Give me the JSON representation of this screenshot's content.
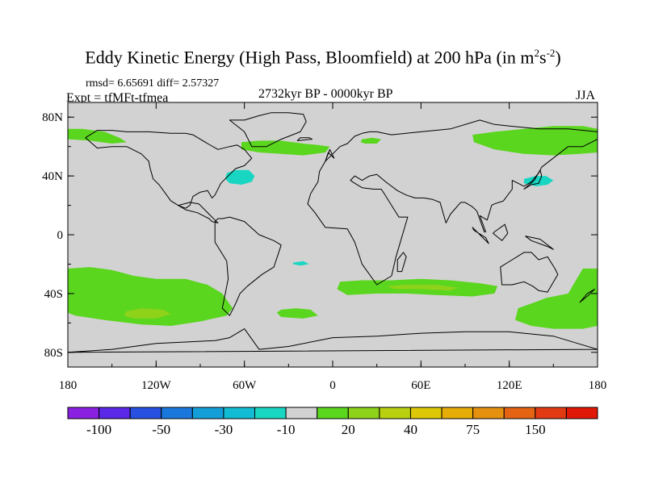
{
  "title": {
    "main": "Eddy Kinetic Energy (High Pass, Bloomfield) at 200 hPa (in m",
    "sup1": "2",
    "mid": "s",
    "sup2": "-2",
    "close": ")"
  },
  "stats": "rmsd= 6.65691 diff= 2.57327",
  "experiment": "Expt = tfMFt-tfmea",
  "period": "2732kyr BP - 0000kyr BP",
  "season": "JJA",
  "chart_data": {
    "type": "filled-contour map",
    "projection": "cylindrical equidistant",
    "lon_range": [
      -180,
      180
    ],
    "lat_range": [
      -90,
      90
    ],
    "x_ticks": [
      {
        "value": -180,
        "label": "180"
      },
      {
        "value": -120,
        "label": "120W"
      },
      {
        "value": -60,
        "label": "60W"
      },
      {
        "value": 0,
        "label": "0"
      },
      {
        "value": 60,
        "label": "60E"
      },
      {
        "value": 120,
        "label": "120E"
      },
      {
        "value": 180,
        "label": "180"
      }
    ],
    "y_ticks": [
      {
        "value": 80,
        "label": "80N"
      },
      {
        "value": 40,
        "label": "40N"
      },
      {
        "value": 0,
        "label": "0"
      },
      {
        "value": -40,
        "label": "40S"
      },
      {
        "value": -80,
        "label": "80S"
      }
    ],
    "background_color": "#d2d2d2",
    "colorbar": {
      "colors": [
        "#8a20e0",
        "#5a28e6",
        "#2850e0",
        "#1a78dc",
        "#149ed8",
        "#12bcd4",
        "#18d6c2",
        "#d2d2d2",
        "#5ad61e",
        "#8ed21a",
        "#b8d010",
        "#dcc806",
        "#e6ac08",
        "#e69010",
        "#e46414",
        "#e23a12",
        "#e01808"
      ],
      "labels": [
        {
          "after_box": 1,
          "label": "-100"
        },
        {
          "after_box": 3,
          "label": "-50"
        },
        {
          "after_box": 5,
          "label": "-30"
        },
        {
          "after_box": 7,
          "label": "-10"
        },
        {
          "after_box": 9,
          "label": "20"
        },
        {
          "after_box": 11,
          "label": "40"
        },
        {
          "after_box": 13,
          "label": "75"
        },
        {
          "after_box": 15,
          "label": "150"
        }
      ]
    },
    "anomaly_regions": [
      {
        "name": "North Pacific / Alaska",
        "level": 10,
        "color": "#5ad61e",
        "lons": [
          -180,
          -170,
          -155,
          -145,
          -140,
          -150,
          -165,
          -180
        ],
        "lats": [
          72,
          72,
          70,
          66,
          63,
          62,
          64,
          65
        ]
      },
      {
        "name": "North Atlantic",
        "level": 10,
        "color": "#5ad61e",
        "lons": [
          -62,
          -50,
          -35,
          -20,
          -10,
          -2,
          -5,
          -20,
          -35,
          -50,
          -62
        ],
        "lats": [
          63,
          64,
          64,
          62,
          61,
          60,
          56,
          54,
          55,
          56,
          58
        ]
      },
      {
        "name": "North Atlantic core",
        "level": -10,
        "color": "#18d6c2",
        "lons": [
          -72,
          -66,
          -57,
          -53,
          -55,
          -62,
          -70,
          -73
        ],
        "lats": [
          42,
          44,
          44,
          40,
          36,
          34,
          35,
          38
        ]
      },
      {
        "name": "Barents Sea",
        "level": 10,
        "color": "#5ad61e",
        "lons": [
          20,
          27,
          33,
          30,
          22,
          19
        ],
        "lats": [
          65,
          66,
          65,
          62,
          62,
          63
        ]
      },
      {
        "name": "Siberia / North Pacific",
        "level": 10,
        "color": "#5ad61e",
        "lons": [
          95,
          110,
          130,
          150,
          170,
          180,
          180,
          168,
          150,
          130,
          110,
          96
        ],
        "lats": [
          68,
          70,
          72,
          74,
          74,
          72,
          56,
          55,
          54,
          55,
          58,
          63
        ]
      },
      {
        "name": "Japan",
        "level": -10,
        "color": "#18d6c2",
        "lons": [
          130,
          138,
          145,
          150,
          146,
          138,
          130
        ],
        "lats": [
          38,
          40,
          40,
          37,
          34,
          33,
          35
        ]
      },
      {
        "name": "South Atlantic tropics",
        "level": -10,
        "color": "#18d6c2",
        "lons": [
          -27,
          -20,
          -16,
          -22,
          -27
        ],
        "lats": [
          -19,
          -18,
          -20,
          -21,
          -20
        ]
      },
      {
        "name": "South Pacific",
        "level": 10,
        "color": "#5ad61e",
        "lons": [
          -180,
          -165,
          -150,
          -135,
          -120,
          -100,
          -85,
          -75,
          -68,
          -72,
          -90,
          -110,
          -130,
          -155,
          -175,
          -180
        ],
        "lats": [
          -23,
          -22,
          -24,
          -28,
          -30,
          -30,
          -34,
          -40,
          -50,
          -55,
          -59,
          -62,
          -61,
          -58,
          -55,
          -53
        ]
      },
      {
        "name": "South Pacific core",
        "level": 20,
        "color": "#8ed21a",
        "lons": [
          -140,
          -130,
          -115,
          -110,
          -120,
          -135,
          -142
        ],
        "lats": [
          -52,
          -50,
          -51,
          -54,
          -57,
          -57,
          -55
        ]
      },
      {
        "name": "South Atlantic",
        "level": 10,
        "color": "#5ad61e",
        "lons": [
          -35,
          -25,
          -15,
          -10,
          -20,
          -35,
          -38
        ],
        "lats": [
          -51,
          -50,
          -51,
          -55,
          -57,
          -56,
          -53
        ]
      },
      {
        "name": "Southern Indian Ocean",
        "level": 10,
        "color": "#5ad61e",
        "lons": [
          5,
          20,
          40,
          60,
          80,
          100,
          112,
          110,
          95,
          70,
          50,
          30,
          10,
          3
        ],
        "lats": [
          -32,
          -31,
          -31,
          -30,
          -31,
          -33,
          -35,
          -40,
          -42,
          -41,
          -40,
          -40,
          -41,
          -37
        ]
      },
      {
        "name": "Southern Indian Ocean core",
        "level": 20,
        "color": "#8ed21a",
        "lons": [
          37,
          50,
          70,
          85,
          80,
          60,
          42
        ],
        "lats": [
          -35,
          -34,
          -34,
          -36,
          -38,
          -37,
          -37
        ]
      },
      {
        "name": "Southern Ocean near Australia",
        "level": 10,
        "color": "#5ad61e",
        "lons": [
          145,
          160,
          170,
          180,
          180,
          170,
          150,
          135,
          124,
          126,
          140
        ],
        "lats": [
          -43,
          -40,
          -23,
          -23,
          -62,
          -64,
          -64,
          -62,
          -58,
          -50,
          -45
        ]
      }
    ],
    "coastlines": [
      {
        "name": "North America",
        "lons": [
          -168,
          -160,
          -150,
          -140,
          -130,
          -125,
          -124,
          -122,
          -118,
          -115,
          -110,
          -105,
          -100,
          -97,
          -95,
          -90,
          -85,
          -82,
          -80,
          -76,
          -70,
          -66,
          -60,
          -55,
          -60,
          -65,
          -70,
          -78,
          -85,
          -95,
          -100,
          -110,
          -125,
          -140,
          -150,
          -160,
          -168
        ],
        "lats": [
          66,
          59,
          60,
          60,
          55,
          50,
          45,
          38,
          34,
          30,
          23,
          20,
          18,
          20,
          26,
          29,
          30,
          25,
          27,
          35,
          41,
          45,
          47,
          52,
          58,
          61,
          60,
          58,
          62,
          68,
          69,
          69,
          70,
          70,
          71,
          71,
          66
        ]
      },
      {
        "name": "Central America",
        "lons": [
          -105,
          -100,
          -92,
          -88,
          -84,
          -82,
          -78,
          -80,
          -84,
          -87,
          -91,
          -97,
          -105
        ],
        "lats": [
          20,
          17,
          15,
          13,
          11,
          9,
          8,
          10,
          14,
          17,
          21,
          22,
          20
        ]
      },
      {
        "name": "Greenland",
        "lons": [
          -55,
          -45,
          -35,
          -22,
          -18,
          -20,
          -30,
          -42,
          -50,
          -60,
          -70,
          -60,
          -55
        ],
        "lats": [
          60,
          60,
          65,
          70,
          77,
          82,
          83,
          83,
          81,
          78,
          78,
          70,
          60
        ]
      },
      {
        "name": "South America",
        "lons": [
          -80,
          -78,
          -75,
          -70,
          -60,
          -50,
          -40,
          -35,
          -37,
          -40,
          -48,
          -58,
          -63,
          -66,
          -70,
          -75,
          -73,
          -71,
          -72,
          -80
        ],
        "lats": [
          9,
          11,
          11,
          12,
          9,
          0,
          -4,
          -7,
          -13,
          -22,
          -27,
          -35,
          -40,
          -47,
          -55,
          -50,
          -40,
          -30,
          -18,
          -5
        ]
      },
      {
        "name": "Eurasia-Africa",
        "lons": [
          -10,
          -15,
          -17,
          -12,
          -5,
          10,
          15,
          20,
          30,
          40,
          43,
          51,
          45,
          40,
          35,
          33,
          28,
          20,
          15,
          12,
          15,
          20,
          25,
          30,
          36,
          44,
          50,
          56,
          62,
          68,
          73,
          77,
          80,
          87,
          90,
          95,
          98,
          103,
          104,
          100,
          105,
          108,
          110,
          116,
          122,
          122,
          126,
          130,
          135,
          140,
          142,
          160,
          170,
          180,
          180,
          160,
          140,
          130,
          110,
          100,
          80,
          60,
          40,
          30,
          25,
          20,
          15,
          10,
          5,
          0,
          -5,
          -9,
          -10
        ],
        "lats": [
          36,
          28,
          21,
          15,
          5,
          4,
          -5,
          -20,
          -34,
          -28,
          -15,
          12,
          12,
          20,
          28,
          31,
          31,
          32,
          35,
          37,
          40,
          37,
          40,
          41,
          36,
          30,
          27,
          25,
          25,
          24,
          22,
          8,
          14,
          22,
          22,
          19,
          16,
          2,
          2,
          13,
          10,
          20,
          21,
          23,
          31,
          37,
          35,
          33,
          36,
          42,
          46,
          60,
          60,
          65,
          70,
          72,
          72,
          73,
          75,
          78,
          72,
          70,
          68,
          70,
          70,
          69,
          67,
          62,
          60,
          55,
          50,
          43,
          36
        ]
      },
      {
        "name": "Madagascar",
        "lons": [
          44,
          47,
          50,
          48,
          44,
          44
        ],
        "lats": [
          -25,
          -25,
          -15,
          -12,
          -17,
          -25
        ]
      },
      {
        "name": "Australia",
        "lons": [
          114,
          115,
          122,
          130,
          136,
          140,
          146,
          153,
          151,
          146,
          140,
          135,
          130,
          122,
          114
        ],
        "lats": [
          -22,
          -34,
          -34,
          -32,
          -35,
          -38,
          -39,
          -27,
          -23,
          -15,
          -17,
          -12,
          -12,
          -17,
          -22
        ]
      },
      {
        "name": "Antarctica",
        "lons": [
          -180,
          -150,
          -120,
          -100,
          -80,
          -70,
          -60,
          -50,
          -30,
          0,
          30,
          60,
          90,
          120,
          150,
          170,
          180
        ],
        "lats": [
          -80,
          -78,
          -74,
          -73,
          -72,
          -70,
          -64,
          -78,
          -76,
          -70,
          -69,
          -67,
          -66,
          -66,
          -69,
          -75,
          -78
        ]
      },
      {
        "name": "New Zealand",
        "lons": [
          168,
          173,
          178,
          174,
          168
        ],
        "lats": [
          -46,
          -40,
          -37,
          -41,
          -46
        ]
      },
      {
        "name": "Japan",
        "lons": [
          130,
          135,
          140,
          142,
          141,
          137,
          130
        ],
        "lats": [
          31,
          34,
          35,
          40,
          44,
          37,
          31
        ]
      },
      {
        "name": "Great Britain",
        "lons": [
          -5,
          -3,
          1,
          -2,
          -5
        ],
        "lats": [
          50,
          56,
          52,
          58,
          50
        ]
      },
      {
        "name": "Borneo",
        "lons": [
          109,
          115,
          119,
          117,
          110,
          109
        ],
        "lats": [
          1,
          -4,
          1,
          7,
          2,
          1
        ]
      },
      {
        "name": "Sumatra",
        "lons": [
          95,
          106,
          104,
          96,
          95
        ],
        "lats": [
          5,
          -6,
          -2,
          3,
          5
        ]
      },
      {
        "name": "New Guinea",
        "lons": [
          131,
          141,
          150,
          146,
          135,
          131
        ],
        "lats": [
          -1,
          -3,
          -10,
          -8,
          -4,
          -1
        ]
      },
      {
        "name": "Iceland",
        "lons": [
          -24,
          -14,
          -16,
          -22,
          -24
        ],
        "lats": [
          64,
          65,
          66,
          66,
          64
        ]
      }
    ]
  }
}
